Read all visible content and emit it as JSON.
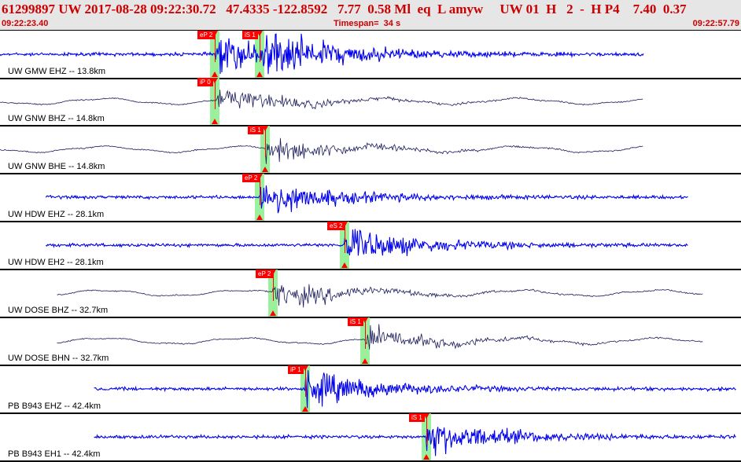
{
  "header": {
    "event_line": "61299897 UW 2017-08-28 09:22:30.72   47.4335 -122.8592   7.77  0.58 Ml  eq  L amyw     UW 01  H   2  -  H P4    7.40  0.37",
    "start_time": "09:22:23.40",
    "timespan": "Timespan=  34 s",
    "end_time": "09:22:57.79"
  },
  "colors": {
    "header_text": "#cc0000",
    "trace_blue": "#0000ee",
    "trace_dark": "#1a1a5a",
    "pick_red": "#ff0000",
    "pick_band": "#90ee90",
    "header_bg": "#e6e6e6"
  },
  "panels": [
    {
      "label": "UW GMW EHZ -- 13.8km",
      "style": "blue",
      "start": 0.0,
      "end": 0.875,
      "picks": [
        {
          "tag": "eP 2",
          "at": 0.29
        },
        {
          "tag": "iS 1",
          "at": 0.35
        }
      ]
    },
    {
      "label": "UW GNW BHZ -- 14.8km",
      "style": "dark",
      "start": 0.0,
      "end": 0.875,
      "picks": [
        {
          "tag": "iP 0",
          "at": 0.29
        }
      ]
    },
    {
      "label": "UW GNW BHE -- 14.8km",
      "style": "dark",
      "start": 0.0,
      "end": 0.875,
      "picks": [
        {
          "tag": "iS 1",
          "at": 0.358
        }
      ]
    },
    {
      "label": "UW HDW EHZ -- 28.1km",
      "style": "blue",
      "start": 0.062,
      "end": 0.935,
      "picks": [
        {
          "tag": "eP 2",
          "at": 0.35
        }
      ]
    },
    {
      "label": "UW HDW EH2 -- 28.1km",
      "style": "blue",
      "start": 0.062,
      "end": 0.935,
      "picks": [
        {
          "tag": "eS 2",
          "at": 0.465
        }
      ]
    },
    {
      "label": "UW DOSE BHZ -- 32.7km",
      "style": "dark",
      "start": 0.077,
      "end": 0.955,
      "picks": [
        {
          "tag": "eP 2",
          "at": 0.368
        }
      ]
    },
    {
      "label": "UW DOSE BHN -- 32.7km",
      "style": "dark",
      "start": 0.077,
      "end": 0.955,
      "picks": [
        {
          "tag": "iS 1",
          "at": 0.493
        }
      ]
    },
    {
      "label": "PB B943 EHZ -- 42.4km",
      "style": "blue",
      "start": 0.127,
      "end": 1.0,
      "picks": [
        {
          "tag": "iP 1",
          "at": 0.412
        }
      ]
    },
    {
      "label": "PB B943 EH1 -- 42.4km",
      "style": "blue",
      "start": 0.127,
      "end": 1.0,
      "picks": [
        {
          "tag": "iS 1",
          "at": 0.575
        }
      ]
    }
  ]
}
